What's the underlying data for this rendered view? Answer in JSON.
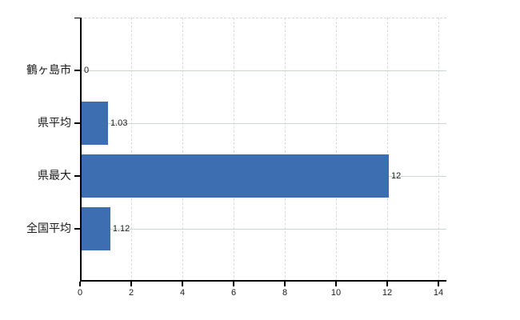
{
  "chart_data": {
    "type": "bar",
    "orientation": "horizontal",
    "title": "",
    "xlabel": "",
    "ylabel": "",
    "categories": [
      "鶴ヶ島市",
      "県平均",
      "県最大",
      "全国平均"
    ],
    "values": [
      0,
      1.03,
      12,
      1.12
    ],
    "value_labels": [
      "0",
      "1.03",
      "12",
      "1.12"
    ],
    "xlim": [
      0,
      14
    ],
    "x_ticks": [
      0,
      2,
      4,
      6,
      8,
      10,
      12,
      14
    ],
    "grid": true,
    "legend": false,
    "colors": {
      "bar": "#3d6eb2",
      "vertical_grid": "#d9d9d9",
      "horizontal_grid": "#ccd6cc",
      "axis": "#000000",
      "text": "#1a1a1a",
      "background": "#ffffff"
    }
  }
}
